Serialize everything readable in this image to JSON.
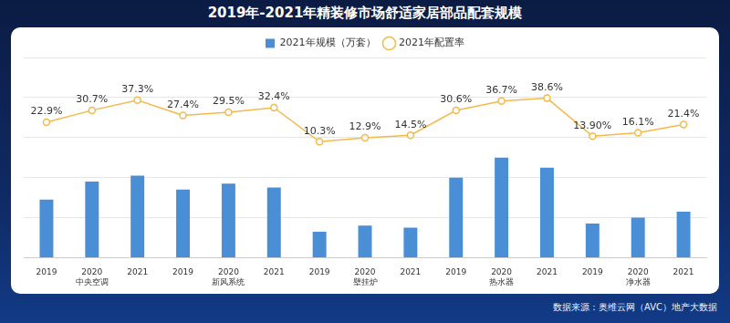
{
  "chart_data": {
    "type": "bar",
    "title": "2019年-2021年精装修市场舒适家居部品配套规模",
    "source": "数据来源：奥维云网（AVC）地产大数据",
    "categories": [
      "2019",
      "2020",
      "2021",
      "2019",
      "2020",
      "2021",
      "2019",
      "2020",
      "2021",
      "2019",
      "2020",
      "2021",
      "2019",
      "2020",
      "2021"
    ],
    "category_groups": [
      "中央空调",
      "新风系统",
      "壁挂炉",
      "热水器",
      "净水器"
    ],
    "series": [
      {
        "name": "2021年规模（万套）",
        "type": "bar",
        "color": "#4a8fd6",
        "values": [
          29,
          38,
          41,
          34,
          37,
          35,
          13,
          16,
          15,
          40,
          50,
          45,
          17,
          20,
          23
        ]
      },
      {
        "name": "2021年配置率",
        "type": "line",
        "axis": "y2",
        "color": "#f5b94a",
        "marker": "circle",
        "data_labels": true,
        "values": [
          22.9,
          30.7,
          37.3,
          27.4,
          29.5,
          32.4,
          10.3,
          12.9,
          14.5,
          30.6,
          36.7,
          38.6,
          13.9,
          16.1,
          21.4
        ],
        "value_labels": [
          "22.9%",
          "30.7%",
          "37.3%",
          "27.4%",
          "29.5%",
          "32.4%",
          "10.3%",
          "12.9%",
          "14.5%",
          "30.6%",
          "36.7%",
          "38.6%",
          "13.90%",
          "16.1%",
          "21.4%"
        ]
      }
    ],
    "ylim": [
      0,
      100
    ],
    "yticks": [
      0,
      20,
      40,
      60,
      80,
      100
    ],
    "y2lim": [
      -65,
      65
    ],
    "y2ticks": [
      -65,
      0,
      65
    ],
    "grid": true,
    "legend": "top",
    "tick_labels": "x"
  }
}
